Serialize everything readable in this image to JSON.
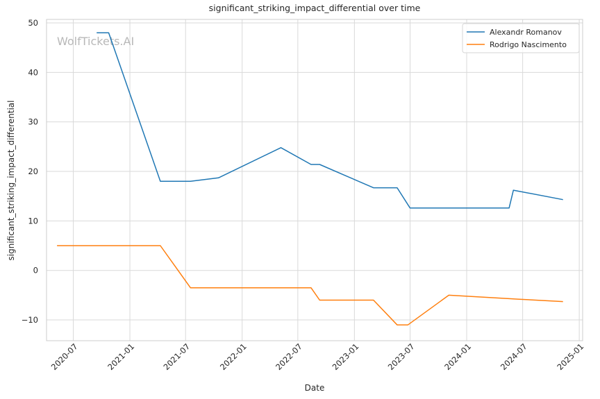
{
  "chart_data": {
    "type": "line",
    "title": "significant_striking_impact_differential over time",
    "xlabel": "Date",
    "ylabel": "significant_striking_impact_differential",
    "watermark": "WolfTickets.AI",
    "x_axis": {
      "type": "date",
      "range": [
        "2020-04-05",
        "2025-01-12"
      ],
      "ticks": [
        "2020-07",
        "2021-01",
        "2021-07",
        "2022-01",
        "2022-07",
        "2023-01",
        "2023-07",
        "2024-01",
        "2024-07",
        "2025-01"
      ]
    },
    "y_axis": {
      "range": [
        -14.2,
        50.7
      ],
      "ticks": [
        -10,
        0,
        10,
        20,
        30,
        40,
        50
      ]
    },
    "grid": true,
    "legend_position": "top-right",
    "series": [
      {
        "name": "Alexandr Romanov",
        "color": "#1f77b4",
        "points": [
          [
            "2020-09-15",
            48
          ],
          [
            "2020-10-24",
            48
          ],
          [
            "2021-04-10",
            18
          ],
          [
            "2021-07-17",
            18
          ],
          [
            "2021-10-16",
            18.7
          ],
          [
            "2022-05-07",
            24.8
          ],
          [
            "2022-08-13",
            21.4
          ],
          [
            "2022-09-10",
            21.4
          ],
          [
            "2023-03-04",
            16.7
          ],
          [
            "2023-05-20",
            16.7
          ],
          [
            "2023-07-01",
            12.6
          ],
          [
            "2024-05-18",
            12.6
          ],
          [
            "2024-06-01",
            16.2
          ],
          [
            "2024-11-09",
            14.3
          ]
        ]
      },
      {
        "name": "Rodrigo Nascimento",
        "color": "#ff7f0e",
        "points": [
          [
            "2020-05-09",
            5
          ],
          [
            "2021-04-10",
            5
          ],
          [
            "2021-07-17",
            -3.5
          ],
          [
            "2022-08-13",
            -3.5
          ],
          [
            "2022-09-10",
            -6
          ],
          [
            "2023-03-04",
            -6
          ],
          [
            "2023-05-20",
            -11
          ],
          [
            "2023-06-24",
            -11
          ],
          [
            "2023-11-04",
            -5
          ],
          [
            "2024-05-18",
            -5.7
          ],
          [
            "2024-06-15",
            -5.8
          ],
          [
            "2024-11-09",
            -6.3
          ]
        ]
      }
    ]
  }
}
